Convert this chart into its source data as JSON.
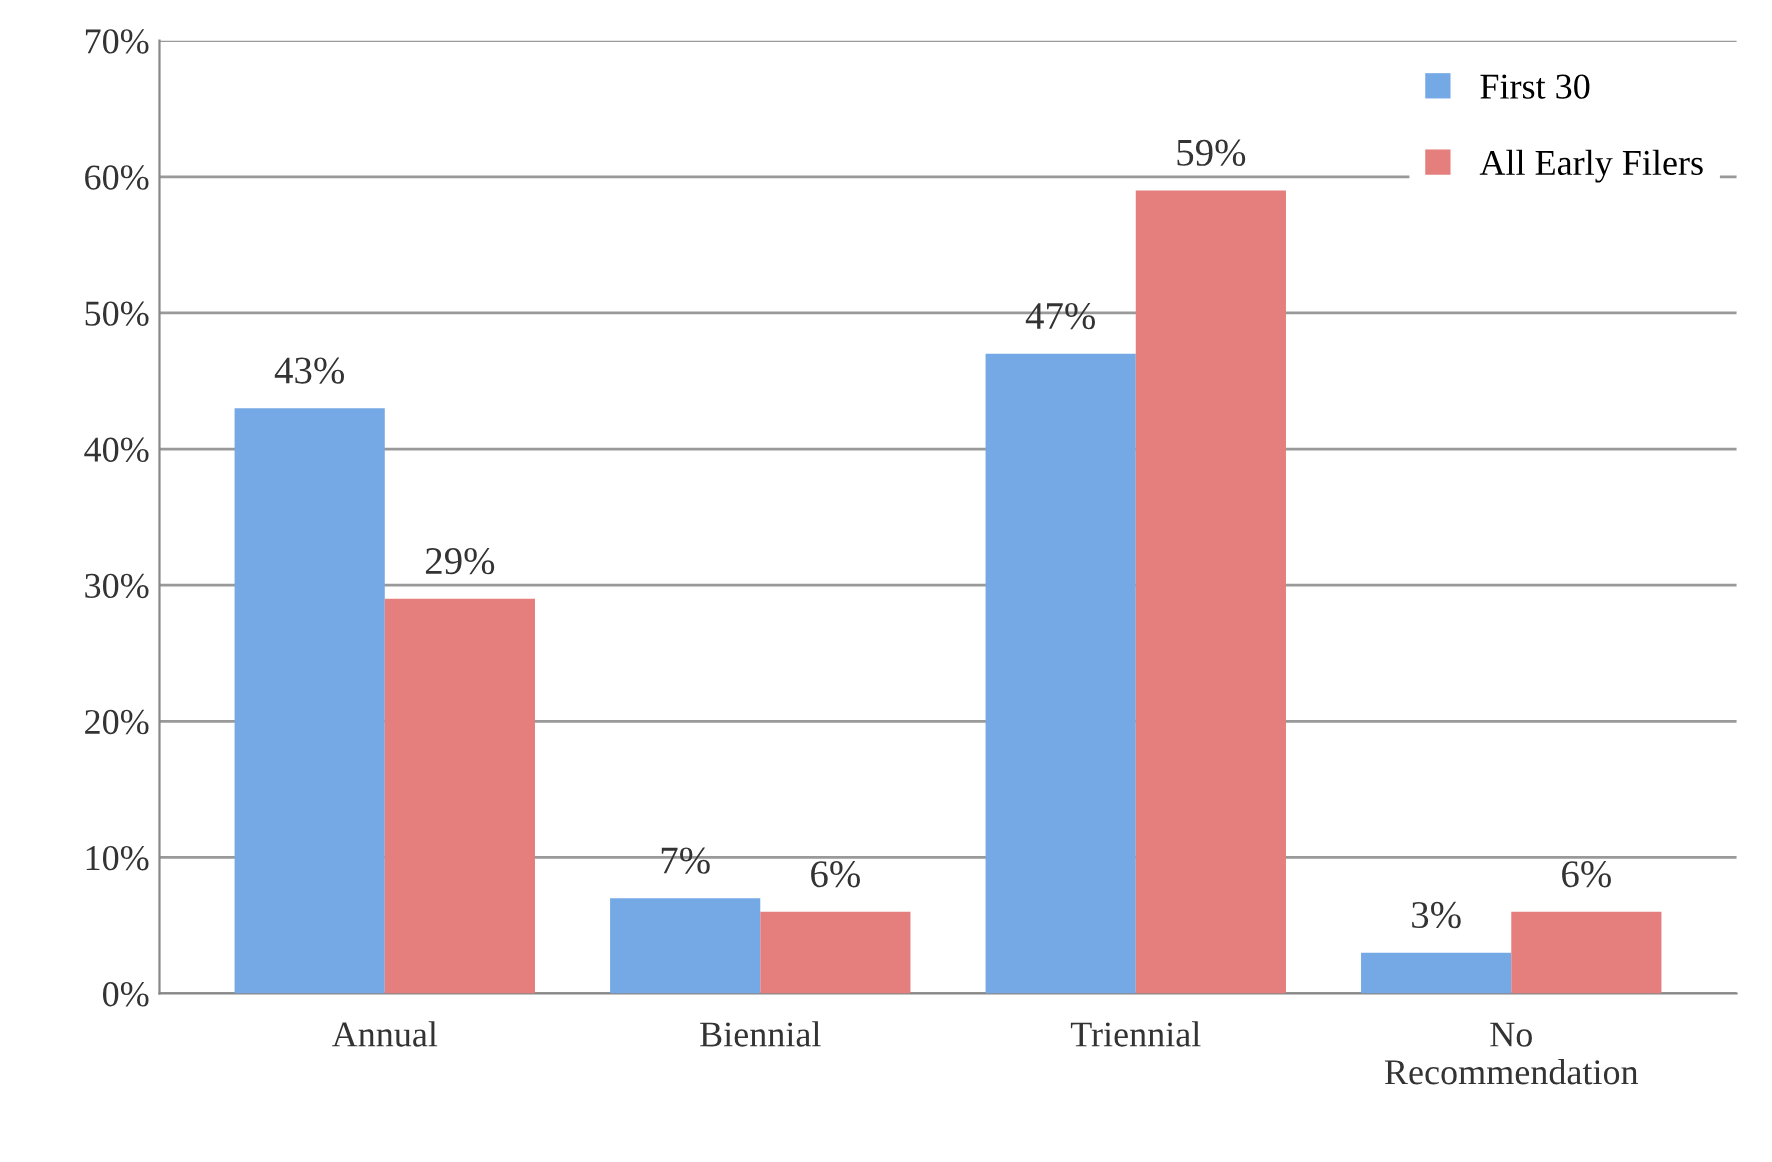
{
  "chart_data": {
    "type": "bar",
    "categories": [
      "Annual",
      "Biennial",
      "Triennial",
      "No\nRecommendation"
    ],
    "series": [
      {
        "name": "First 30",
        "color": "#74a9e6",
        "values": [
          43,
          7,
          47,
          3
        ],
        "value_labels": [
          "43%",
          "7%",
          "47%",
          "3%"
        ]
      },
      {
        "name": "All Early Filers",
        "color": "#e57f7d",
        "values": [
          29,
          6,
          59,
          6
        ],
        "value_labels": [
          "29%",
          "6%",
          "59%",
          "6%"
        ]
      }
    ],
    "ylim": [
      0,
      70
    ],
    "yticks": [
      {
        "value": 0,
        "label": "0%"
      },
      {
        "value": 10,
        "label": "10%"
      },
      {
        "value": 20,
        "label": "20%"
      },
      {
        "value": 30,
        "label": "30%"
      },
      {
        "value": 40,
        "label": "40%"
      },
      {
        "value": 50,
        "label": "50%"
      },
      {
        "value": 60,
        "label": "60%"
      },
      {
        "value": 70,
        "label": "70%"
      }
    ],
    "grid": "y",
    "legend": "top right"
  }
}
